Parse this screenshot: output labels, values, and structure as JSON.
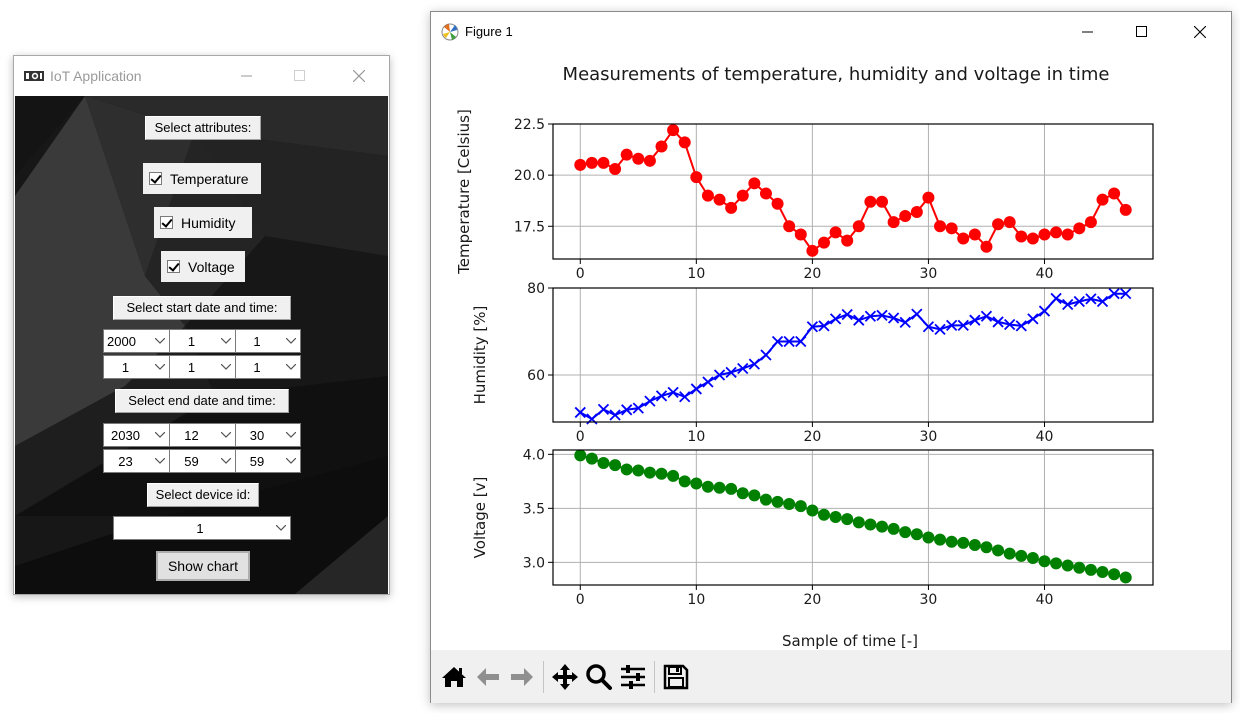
{
  "iot_window": {
    "title": "IoT Application",
    "controls": {
      "minimize": "—",
      "maximize": "☐",
      "close": "✕"
    },
    "select_attributes_label": "Select attributes:",
    "attributes": [
      {
        "label": "Temperature",
        "checked": true
      },
      {
        "label": "Humidity",
        "checked": true
      },
      {
        "label": "Voltage",
        "checked": true
      }
    ],
    "start_label": "Select start date and time:",
    "start": {
      "year": "2000",
      "month": "1",
      "day": "1",
      "hour": "1",
      "minute": "1",
      "second": "1"
    },
    "end_label": "Select end date and time:",
    "end": {
      "year": "2030",
      "month": "12",
      "day": "30",
      "hour": "23",
      "minute": "59",
      "second": "59"
    },
    "device_label": "Select device id:",
    "device_id": "1",
    "show_chart_button": "Show chart"
  },
  "figure_window": {
    "title": "Figure 1",
    "controls": {
      "minimize": "—",
      "maximize": "☐",
      "close": "✕"
    },
    "toolbar": {
      "icons": [
        "home-icon",
        "back-arrow-icon",
        "forward-arrow-icon",
        "pan-icon",
        "zoom-icon",
        "configure-subplots-icon",
        "save-icon"
      ]
    }
  },
  "colors": {
    "temperature": "#ff0000",
    "humidity": "#0000ff",
    "voltage": "#008000",
    "grid": "#b0b0b0"
  },
  "chart_data": {
    "type": "line",
    "title": "Measurements of temperature, humidity and voltage in time",
    "xlabel": "Sample of time [-]",
    "x": [
      0,
      1,
      2,
      3,
      4,
      5,
      6,
      7,
      8,
      9,
      10,
      11,
      12,
      13,
      14,
      15,
      16,
      17,
      18,
      19,
      20,
      21,
      22,
      23,
      24,
      25,
      26,
      27,
      28,
      29,
      30,
      31,
      32,
      33,
      34,
      35,
      36,
      37,
      38,
      39,
      40,
      41,
      42,
      43,
      44,
      45,
      46,
      47
    ],
    "xticks": [
      0,
      10,
      20,
      30,
      40
    ],
    "xlim": [
      -2.35,
      49.35
    ],
    "grid": true,
    "subplots": [
      {
        "name": "Temperature",
        "ylabel": "Temperature [Celsius]",
        "marker": "o",
        "color": "#ff0000",
        "yticks": [
          "17.5",
          "20.0",
          "22.5"
        ],
        "ylim": [
          15.9,
          22.5
        ],
        "values": [
          20.5,
          20.6,
          20.6,
          20.3,
          21.0,
          20.8,
          20.7,
          21.4,
          22.2,
          21.6,
          19.9,
          19.0,
          18.8,
          18.4,
          19.0,
          19.6,
          19.1,
          18.6,
          17.5,
          17.1,
          16.3,
          16.7,
          17.2,
          16.8,
          17.5,
          18.7,
          18.7,
          17.7,
          18.0,
          18.2,
          18.9,
          17.5,
          17.4,
          16.9,
          17.1,
          16.5,
          17.6,
          17.7,
          17.0,
          16.9,
          17.1,
          17.2,
          17.1,
          17.4,
          17.7,
          18.8,
          19.1,
          18.3
        ]
      },
      {
        "name": "Humidity",
        "ylabel": "Humidity [%]",
        "marker": "x",
        "color": "#0000ff",
        "yticks": [
          "60",
          "80"
        ],
        "ylim": [
          49.2,
          80.0
        ],
        "values": [
          51.4,
          49.9,
          52.1,
          50.8,
          52.0,
          52.4,
          54.0,
          55.2,
          56.0,
          55.0,
          56.8,
          58.4,
          60.0,
          60.6,
          61.5,
          62.5,
          64.6,
          67.7,
          67.7,
          67.7,
          71.1,
          71.3,
          72.9,
          73.9,
          72.6,
          73.5,
          73.7,
          73.1,
          72.1,
          74.0,
          71.1,
          70.5,
          71.4,
          71.4,
          72.6,
          73.5,
          72.2,
          71.6,
          71.3,
          72.9,
          74.7,
          77.6,
          76.2,
          76.9,
          77.5,
          76.9,
          78.7,
          78.7
        ]
      },
      {
        "name": "Voltage",
        "ylabel": "Voltage [v]",
        "marker": "o",
        "color": "#008000",
        "yticks": [
          "3.0",
          "3.5",
          "4.0"
        ],
        "ylim": [
          2.79,
          4.04
        ],
        "values": [
          3.99,
          3.96,
          3.92,
          3.9,
          3.86,
          3.85,
          3.83,
          3.82,
          3.8,
          3.75,
          3.73,
          3.7,
          3.69,
          3.68,
          3.64,
          3.62,
          3.58,
          3.56,
          3.54,
          3.52,
          3.48,
          3.44,
          3.42,
          3.4,
          3.37,
          3.35,
          3.33,
          3.31,
          3.28,
          3.26,
          3.23,
          3.21,
          3.19,
          3.18,
          3.16,
          3.14,
          3.11,
          3.08,
          3.06,
          3.04,
          3.01,
          2.99,
          2.97,
          2.95,
          2.93,
          2.91,
          2.89,
          2.86
        ]
      }
    ]
  }
}
